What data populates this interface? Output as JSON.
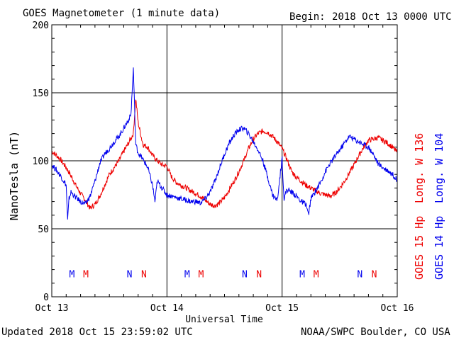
{
  "header": {
    "title": "GOES Magnetometer (1 minute data)",
    "begin_label": "Begin:",
    "begin_value": "2018 Oct 13 0000 UTC"
  },
  "footer": {
    "updated": "Updated 2018 Oct 15 23:59:02 UTC",
    "credit": "NOAA/SWPC Boulder, CO USA"
  },
  "chart_data": {
    "type": "line",
    "xlabel": "Universal Time",
    "ylabel": "NanoTesla (nT)",
    "xlim": [
      0,
      72
    ],
    "ylim": [
      0,
      200
    ],
    "x_unit": "hours since 2018 Oct 13 0000 UTC",
    "x_ticks": [
      {
        "value": 0,
        "label": "Oct 13"
      },
      {
        "value": 24,
        "label": "Oct 14"
      },
      {
        "value": 48,
        "label": "Oct 15"
      },
      {
        "value": 72,
        "label": "Oct 16"
      }
    ],
    "y_ticks": [
      0,
      50,
      100,
      150,
      200
    ],
    "grid": true,
    "legend_placement": "right, vertical",
    "series": [
      {
        "name": "GOES 15 Hp",
        "legend_longitude": "Long. W 136",
        "color": "#ee0000",
        "x": [
          0,
          1,
          2,
          3,
          4,
          5,
          6,
          7,
          8,
          9,
          10,
          11,
          12,
          13,
          14,
          15,
          16,
          17,
          17.5,
          18,
          19,
          20,
          21,
          22,
          23,
          24,
          25,
          26,
          27,
          28,
          29,
          30,
          31,
          32,
          33,
          34,
          35,
          36,
          37,
          38,
          39,
          40,
          41,
          42,
          43,
          44,
          45,
          46,
          47,
          48,
          49,
          50,
          51,
          52,
          53,
          54,
          55,
          56,
          57,
          58,
          59,
          60,
          61,
          62,
          63,
          64,
          65,
          66,
          67,
          68,
          69,
          70,
          71,
          72
        ],
        "y": [
          107,
          104,
          100,
          95,
          89,
          82,
          76,
          71,
          65,
          68,
          74,
          82,
          90,
          95,
          100,
          107,
          113,
          120,
          146,
          128,
          112,
          110,
          104,
          100,
          97,
          96,
          88,
          84,
          82,
          80,
          78,
          76,
          74,
          71,
          68,
          67,
          69,
          73,
          79,
          85,
          92,
          100,
          109,
          116,
          120,
          122,
          121,
          118,
          114,
          109,
          101,
          92,
          88,
          85,
          82,
          80,
          78,
          76,
          75,
          74,
          76,
          80,
          85,
          91,
          97,
          104,
          110,
          115,
          116,
          117,
          115,
          113,
          110,
          106
        ]
      },
      {
        "name": "GOES 14 Hp",
        "legend_longitude": "Long. W 104",
        "color": "#0000ee",
        "x": [
          0,
          1,
          2,
          3,
          3.3,
          3.6,
          4,
          5,
          6,
          7,
          8,
          9,
          10,
          11,
          12,
          13,
          14,
          15,
          16,
          16.5,
          17,
          17.5,
          18,
          19,
          20,
          21,
          21.5,
          22,
          23,
          24,
          25,
          26,
          27,
          28,
          29,
          30,
          31,
          32,
          33,
          34,
          35,
          36,
          37,
          38,
          39,
          40,
          41,
          42,
          43,
          44,
          45,
          46,
          47,
          48,
          48.4,
          49,
          50,
          51,
          52,
          53,
          53.5,
          54,
          55,
          56,
          57,
          58,
          59,
          60,
          61,
          62,
          63,
          64,
          65,
          66,
          67,
          68,
          69,
          70,
          71,
          72
        ],
        "y": [
          97,
          93,
          88,
          82,
          56,
          72,
          77,
          73,
          70,
          68,
          74,
          85,
          98,
          105,
          109,
          114,
          118,
          124,
          130,
          134,
          168,
          112,
          106,
          101,
          95,
          82,
          70,
          85,
          80,
          75,
          74,
          73,
          72,
          71,
          70,
          70,
          69,
          72,
          77,
          85,
          95,
          105,
          113,
          119,
          123,
          124,
          120,
          114,
          108,
          100,
          88,
          75,
          71,
          102,
          72,
          79,
          77,
          74,
          70,
          68,
          60,
          72,
          78,
          84,
          92,
          98,
          103,
          108,
          113,
          118,
          116,
          114,
          112,
          110,
          105,
          98,
          95,
          93,
          90,
          86
        ]
      }
    ],
    "markers": [
      {
        "letter": "M",
        "x": 4.2,
        "color": "#0000ee"
      },
      {
        "letter": "M",
        "x": 7.1,
        "color": "#ee0000"
      },
      {
        "letter": "N",
        "x": 16.2,
        "color": "#0000ee"
      },
      {
        "letter": "N",
        "x": 19.2,
        "color": "#ee0000"
      },
      {
        "letter": "M",
        "x": 28.2,
        "color": "#0000ee"
      },
      {
        "letter": "M",
        "x": 31.1,
        "color": "#ee0000"
      },
      {
        "letter": "N",
        "x": 40.2,
        "color": "#0000ee"
      },
      {
        "letter": "N",
        "x": 43.2,
        "color": "#ee0000"
      },
      {
        "letter": "M",
        "x": 52.2,
        "color": "#0000ee"
      },
      {
        "letter": "M",
        "x": 55.1,
        "color": "#ee0000"
      },
      {
        "letter": "N",
        "x": 64.2,
        "color": "#0000ee"
      },
      {
        "letter": "N",
        "x": 67.2,
        "color": "#ee0000"
      }
    ],
    "marker_y": 17
  }
}
